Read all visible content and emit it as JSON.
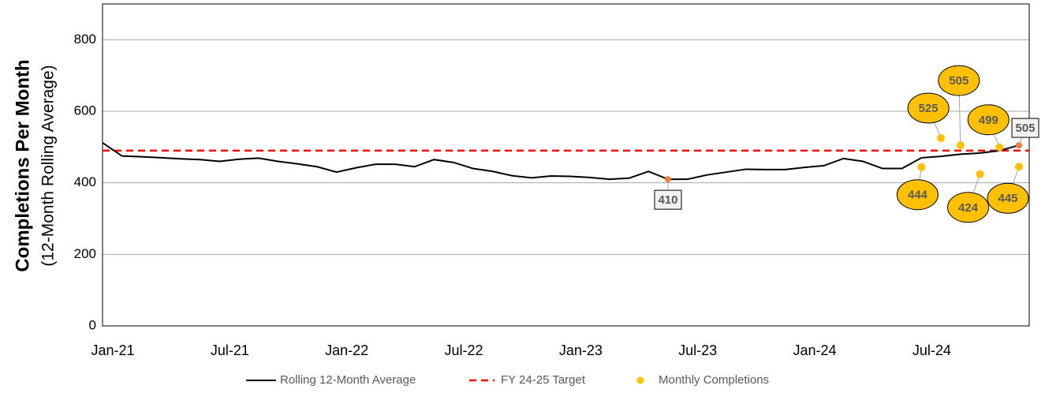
{
  "chart_data": {
    "type": "line",
    "ylabel": "Completions Per Month",
    "ylabel_sub": "(12-Month Rolling Average)",
    "categories": [
      "Jan-21",
      null,
      null,
      null,
      null,
      null,
      "Jul-21",
      null,
      null,
      null,
      null,
      null,
      "Jan-22",
      null,
      null,
      null,
      null,
      null,
      "Jul-22",
      null,
      null,
      null,
      null,
      null,
      "Jan-23",
      null,
      null,
      null,
      null,
      null,
      "Jul-23",
      null,
      null,
      null,
      null,
      null,
      "Jan-24",
      null,
      null,
      null,
      null,
      null,
      "Jul-24",
      null,
      null,
      null,
      null,
      null
    ],
    "series": [
      {
        "name": "Rolling 12-Month Average",
        "color": "#000000",
        "style": "line",
        "values": [
          512,
          475,
          473,
          470,
          467,
          465,
          460,
          466,
          469,
          460,
          453,
          445,
          430,
          442,
          452,
          452,
          445,
          465,
          457,
          440,
          432,
          420,
          414,
          419,
          418,
          415,
          410,
          413,
          432,
          410,
          410,
          422,
          430,
          438,
          437,
          437,
          443,
          448,
          468,
          460,
          440,
          440,
          470,
          474,
          480,
          483,
          490,
          505
        ],
        "labeled_points": [
          29,
          47
        ],
        "highlight_color": "#ed7d31"
      },
      {
        "name": "Monthly Completions",
        "color": "#ffc000",
        "style": "dots",
        "values": [
          null,
          null,
          null,
          null,
          null,
          null,
          null,
          null,
          null,
          null,
          null,
          null,
          null,
          null,
          null,
          null,
          null,
          null,
          null,
          null,
          null,
          null,
          null,
          null,
          null,
          null,
          null,
          null,
          null,
          null,
          null,
          null,
          null,
          null,
          null,
          null,
          null,
          null,
          null,
          null,
          null,
          null,
          444,
          525,
          505,
          424,
          499,
          445
        ]
      }
    ],
    "reference_lines": [
      {
        "name": "FY 24-25 Target",
        "value": 490,
        "color": "#ff0000"
      }
    ],
    "ylim": [
      0,
      900
    ],
    "yticks": [
      0,
      200,
      400,
      600,
      800
    ],
    "grid": true,
    "legend": "bottom"
  }
}
